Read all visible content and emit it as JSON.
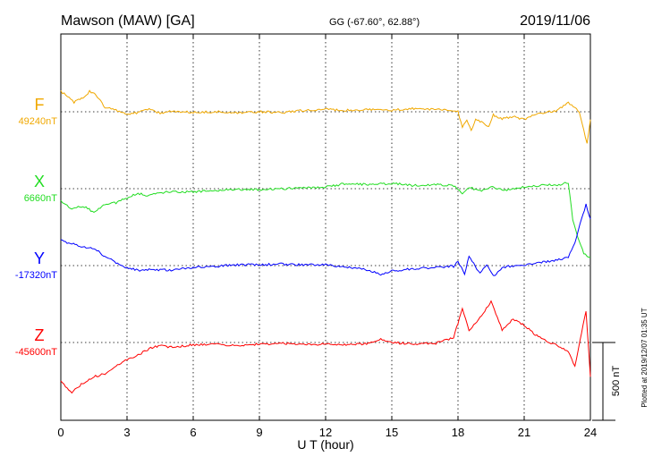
{
  "header": {
    "station": "Mawson (MAW)  [GA]",
    "coordinates": "GG (-67.60°,  62.88°)",
    "date": "2019/11/06"
  },
  "footer": {
    "plotted": "Plotted at 2019/12/07 01:35 UT",
    "scale_label": "500 nT"
  },
  "chart_data": {
    "type": "line",
    "xlabel": "U T (hour)",
    "xlim": [
      0,
      24
    ],
    "xticks": [
      0,
      3,
      6,
      9,
      12,
      15,
      18,
      21,
      24
    ],
    "tick_labels": [
      "0",
      "3",
      "6",
      "9",
      "12",
      "15",
      "18",
      "21",
      "24"
    ],
    "grid": true,
    "scale_bar_nT": 500,
    "series": [
      {
        "name": "F",
        "baseline": "49240nT",
        "baseline_nT": 49240,
        "color": "#f0a800",
        "points": [
          [
            0,
            -130
          ],
          [
            0.3,
            -100
          ],
          [
            0.6,
            -60
          ],
          [
            1.0,
            -90
          ],
          [
            1.3,
            -130
          ],
          [
            1.6,
            -110
          ],
          [
            2.0,
            -30
          ],
          [
            2.5,
            -10
          ],
          [
            3.0,
            15
          ],
          [
            3.5,
            5
          ],
          [
            4.0,
            -20
          ],
          [
            4.5,
            10
          ],
          [
            5.0,
            -5
          ],
          [
            5.5,
            0
          ],
          [
            6.0,
            5
          ],
          [
            7.0,
            0
          ],
          [
            8.0,
            5
          ],
          [
            9.0,
            0
          ],
          [
            10.0,
            5
          ],
          [
            11.0,
            -10
          ],
          [
            12.0,
            -15
          ],
          [
            13.0,
            -10
          ],
          [
            14.0,
            -15
          ],
          [
            15.0,
            -10
          ],
          [
            16.0,
            -20
          ],
          [
            17.0,
            -15
          ],
          [
            17.8,
            -5
          ],
          [
            18.0,
            0
          ],
          [
            18.2,
            100
          ],
          [
            18.4,
            60
          ],
          [
            18.6,
            120
          ],
          [
            18.8,
            50
          ],
          [
            19.0,
            60
          ],
          [
            19.4,
            100
          ],
          [
            19.6,
            20
          ],
          [
            20.0,
            45
          ],
          [
            20.5,
            30
          ],
          [
            21.0,
            50
          ],
          [
            21.5,
            20
          ],
          [
            22.0,
            5
          ],
          [
            22.5,
            -10
          ],
          [
            23.0,
            -60
          ],
          [
            23.3,
            -30
          ],
          [
            23.5,
            0
          ],
          [
            23.7,
            120
          ],
          [
            23.85,
            200
          ],
          [
            24.0,
            50
          ]
        ]
      },
      {
        "name": "X",
        "baseline": "6660nT",
        "baseline_nT": 6660,
        "color": "#22dd22",
        "points": [
          [
            0,
            80
          ],
          [
            0.5,
            130
          ],
          [
            1.0,
            110
          ],
          [
            1.5,
            150
          ],
          [
            2.0,
            100
          ],
          [
            2.5,
            90
          ],
          [
            3.0,
            60
          ],
          [
            3.5,
            30
          ],
          [
            4.0,
            45
          ],
          [
            4.5,
            25
          ],
          [
            5.0,
            20
          ],
          [
            6.0,
            20
          ],
          [
            7.0,
            10
          ],
          [
            8.0,
            5
          ],
          [
            9.0,
            5
          ],
          [
            10.0,
            0
          ],
          [
            11.0,
            -5
          ],
          [
            12.0,
            -10
          ],
          [
            13.0,
            -35
          ],
          [
            14.0,
            -25
          ],
          [
            15.0,
            -35
          ],
          [
            16.0,
            -20
          ],
          [
            17.0,
            -25
          ],
          [
            17.8,
            -20
          ],
          [
            18.0,
            0
          ],
          [
            18.2,
            40
          ],
          [
            18.5,
            -10
          ],
          [
            19.0,
            15
          ],
          [
            19.5,
            -15
          ],
          [
            20.0,
            10
          ],
          [
            20.5,
            5
          ],
          [
            21.0,
            -10
          ],
          [
            22.0,
            -25
          ],
          [
            22.5,
            -20
          ],
          [
            23.0,
            -40
          ],
          [
            23.2,
            200
          ],
          [
            23.5,
            340
          ],
          [
            23.7,
            420
          ],
          [
            24.0,
            440
          ]
        ]
      },
      {
        "name": "Y",
        "baseline": "-17320nT",
        "baseline_nT": -17320,
        "color": "#0000ff",
        "points": [
          [
            0,
            -160
          ],
          [
            0.5,
            -140
          ],
          [
            1.0,
            -120
          ],
          [
            1.5,
            -110
          ],
          [
            2.0,
            -60
          ],
          [
            2.5,
            -20
          ],
          [
            3.0,
            15
          ],
          [
            3.5,
            30
          ],
          [
            4.0,
            25
          ],
          [
            5.0,
            30
          ],
          [
            6.0,
            10
          ],
          [
            7.0,
            5
          ],
          [
            8.0,
            -5
          ],
          [
            9.0,
            -5
          ],
          [
            10.0,
            -10
          ],
          [
            11.0,
            -5
          ],
          [
            12.0,
            -5
          ],
          [
            13.0,
            10
          ],
          [
            14.0,
            30
          ],
          [
            14.5,
            60
          ],
          [
            15.0,
            35
          ],
          [
            16.0,
            20
          ],
          [
            17.0,
            10
          ],
          [
            17.8,
            5
          ],
          [
            18.0,
            -30
          ],
          [
            18.3,
            60
          ],
          [
            18.5,
            -60
          ],
          [
            19.0,
            50
          ],
          [
            19.3,
            -10
          ],
          [
            19.6,
            70
          ],
          [
            20.0,
            10
          ],
          [
            21.0,
            -5
          ],
          [
            22.0,
            -25
          ],
          [
            23.0,
            -50
          ],
          [
            23.3,
            -150
          ],
          [
            23.6,
            -300
          ],
          [
            23.8,
            -390
          ],
          [
            24.0,
            -300
          ]
        ]
      },
      {
        "name": "Z",
        "baseline": "-45600nT",
        "baseline_nT": -45600,
        "color": "#ff0000",
        "points": [
          [
            0,
            250
          ],
          [
            0.5,
            320
          ],
          [
            1.0,
            260
          ],
          [
            1.5,
            220
          ],
          [
            2.0,
            200
          ],
          [
            2.5,
            150
          ],
          [
            3.0,
            110
          ],
          [
            3.5,
            80
          ],
          [
            4.0,
            40
          ],
          [
            4.5,
            20
          ],
          [
            5.0,
            30
          ],
          [
            6.0,
            15
          ],
          [
            7.0,
            10
          ],
          [
            8.0,
            20
          ],
          [
            9.0,
            10
          ],
          [
            10.0,
            5
          ],
          [
            11.0,
            15
          ],
          [
            12.0,
            10
          ],
          [
            13.0,
            15
          ],
          [
            14.0,
            5
          ],
          [
            14.5,
            -20
          ],
          [
            15.0,
            0
          ],
          [
            16.0,
            10
          ],
          [
            17.0,
            5
          ],
          [
            17.8,
            -30
          ],
          [
            18.2,
            -220
          ],
          [
            18.5,
            -80
          ],
          [
            19.0,
            -160
          ],
          [
            19.5,
            -260
          ],
          [
            20.0,
            -80
          ],
          [
            20.5,
            -150
          ],
          [
            21.0,
            -110
          ],
          [
            21.5,
            -50
          ],
          [
            22.0,
            -10
          ],
          [
            22.5,
            20
          ],
          [
            23.0,
            60
          ],
          [
            23.3,
            150
          ],
          [
            23.6,
            -60
          ],
          [
            23.8,
            -200
          ],
          [
            24.0,
            220
          ]
        ]
      }
    ]
  }
}
